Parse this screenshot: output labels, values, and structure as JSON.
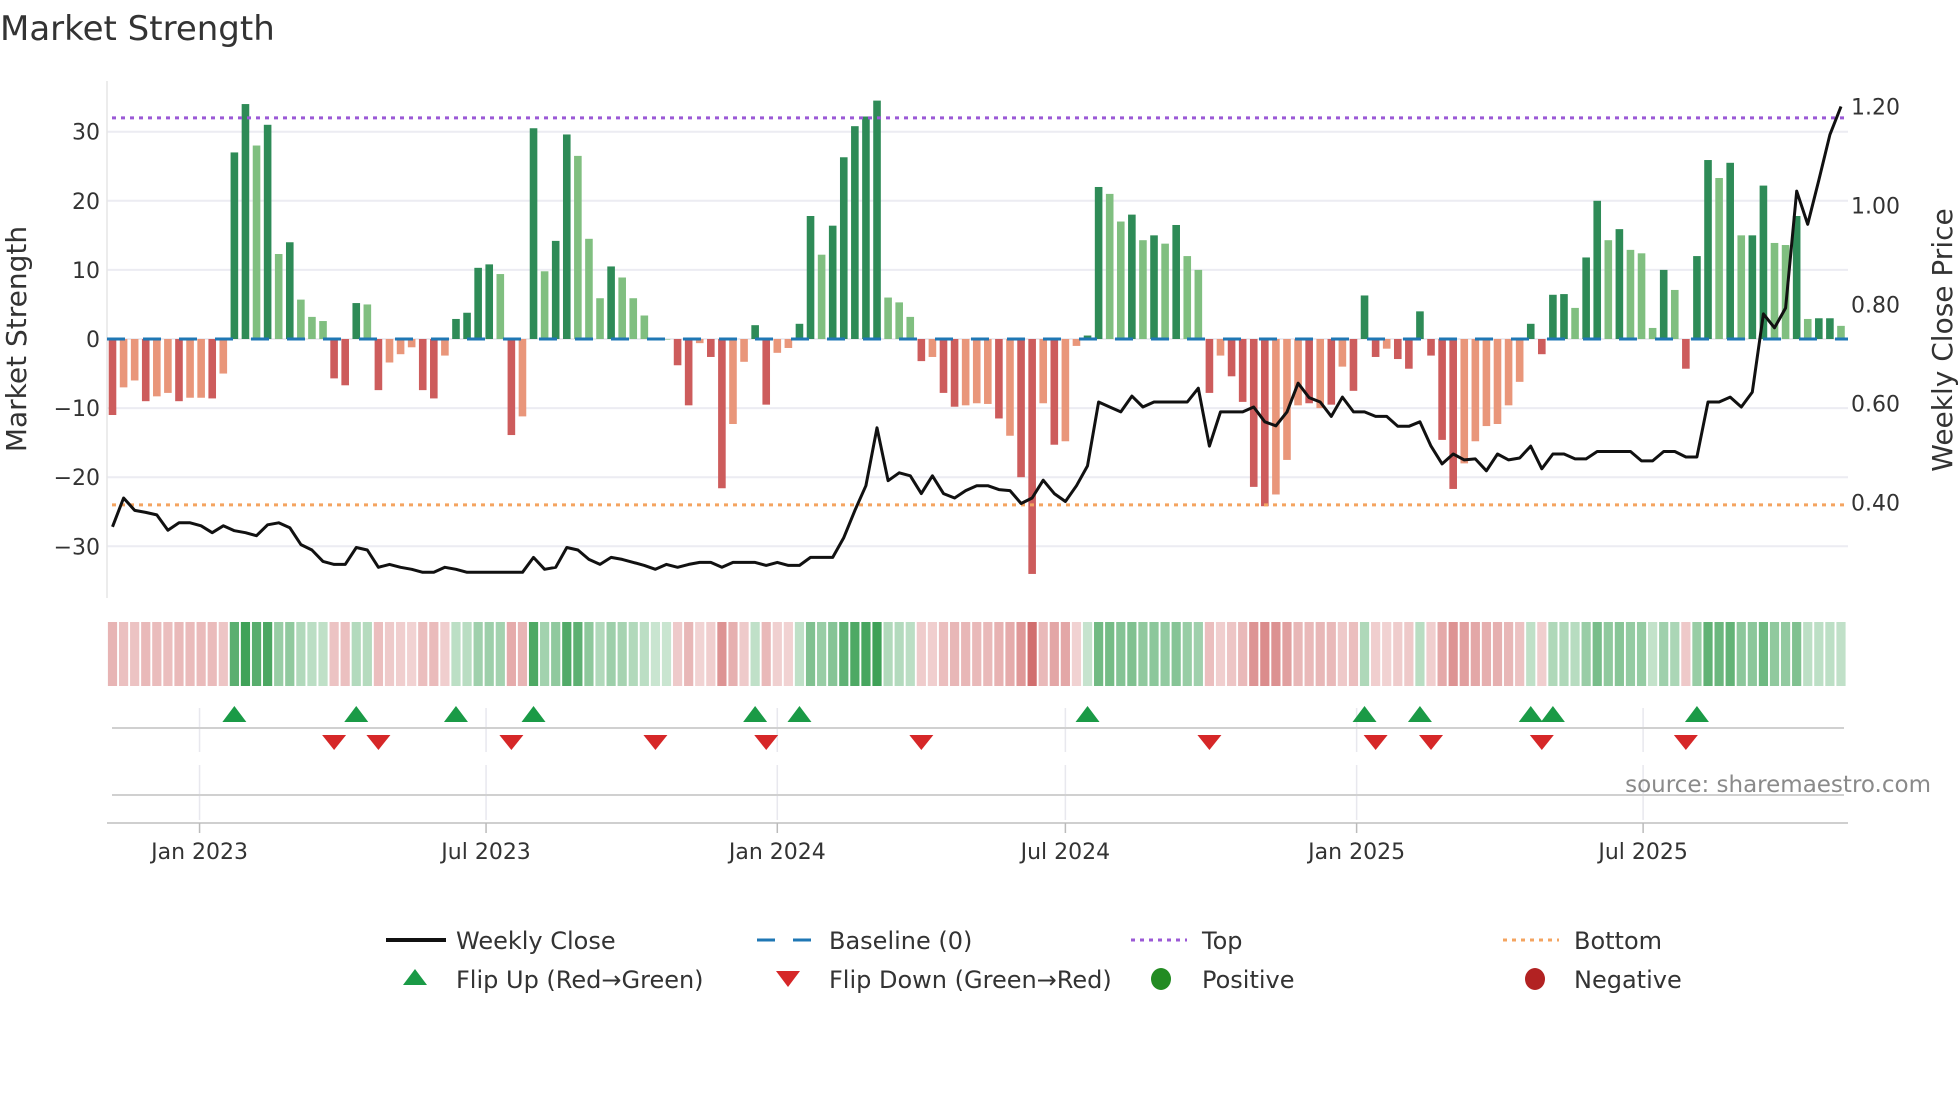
{
  "chart_data": {
    "type": "bar",
    "title": "Market Strength",
    "ylabel": "Market Strength",
    "y2label": "Weekly Close Price",
    "ylim": [
      -37.4,
      37.3
    ],
    "y2lim": [
      0.208,
      1.251
    ],
    "x_start": "2022-11-07",
    "x_step_days": 7,
    "yticks": [
      {
        "v": 30,
        "label": "30"
      },
      {
        "v": 20,
        "label": "20"
      },
      {
        "v": 10,
        "label": "10"
      },
      {
        "v": 0,
        "label": "0"
      },
      {
        "v": -10,
        "label": "−10"
      },
      {
        "v": -20,
        "label": "−20"
      },
      {
        "v": -30,
        "label": "−30"
      }
    ],
    "y2ticks": [
      {
        "v": 1.2,
        "label": "1.20"
      },
      {
        "v": 1.0,
        "label": "1.00"
      },
      {
        "v": 0.8,
        "label": "0.80"
      },
      {
        "v": 0.6,
        "label": "0.60"
      },
      {
        "v": 0.4,
        "label": "0.40"
      }
    ],
    "xticks": [
      {
        "date": "2023-01-01",
        "label": "Jan 2023"
      },
      {
        "date": "2023-07-01",
        "label": "Jul 2023"
      },
      {
        "date": "2024-01-01",
        "label": "Jan 2024"
      },
      {
        "date": "2024-07-01",
        "label": "Jul 2024"
      },
      {
        "date": "2025-01-01",
        "label": "Jan 2025"
      },
      {
        "date": "2025-07-01",
        "label": "Jul 2025"
      }
    ],
    "levels": {
      "top": 32,
      "bottom": -24,
      "baseline": 0
    },
    "strength": [
      -11,
      -7,
      -6,
      -9,
      -8.3,
      -7.8,
      -9,
      -8.5,
      -8.5,
      -8.6,
      -5,
      27,
      34,
      28,
      31,
      12.3,
      14,
      5.7,
      3.2,
      2.6,
      -5.7,
      -6.7,
      5.2,
      5,
      -7.4,
      -3.4,
      -2.2,
      -1.2,
      -7.4,
      -8.6,
      -2.4,
      2.9,
      3.8,
      10.3,
      10.8,
      9.4,
      -13.9,
      -11.2,
      30.5,
      9.8,
      14.2,
      29.6,
      26.5,
      14.5,
      5.9,
      10.5,
      8.9,
      5.9,
      3.4,
      0,
      0,
      -3.8,
      -9.6,
      -0.6,
      -2.6,
      -21.6,
      -12.3,
      -3.3,
      2,
      -9.5,
      -2,
      -1.3,
      2.2,
      17.8,
      12.2,
      16.4,
      26.3,
      30.8,
      32.2,
      34.5,
      6,
      5.3,
      3.2,
      -3.2,
      -2.6,
      -7.8,
      -9.8,
      -9.6,
      -9.3,
      -9.4,
      -11.5,
      -14,
      -20,
      -34,
      -9.3,
      -15.3,
      -14.8,
      -1,
      0.5,
      22,
      21,
      17,
      18,
      14.3,
      15,
      13.8,
      16.5,
      12,
      10,
      -7.8,
      -2.4,
      -5.4,
      -9.1,
      -21.4,
      -24.2,
      -22.5,
      -17.5,
      -9.6,
      -9.3,
      -10,
      -9.5,
      -4,
      -7.5,
      6.3,
      -2.6,
      -1.4,
      -2.9,
      -4.3,
      4,
      -2.4,
      -14.6,
      -21.7,
      -18,
      -14.8,
      -12.6,
      -12.3,
      -9.6,
      -6.2,
      2.2,
      -2.2,
      6.4,
      6.5,
      4.5,
      11.8,
      20,
      14.3,
      15.9,
      12.9,
      12.4,
      1.6,
      10,
      7.1,
      -4.3,
      12,
      25.9,
      23.3,
      25.5,
      15,
      15,
      22.2,
      13.9,
      13.6,
      17.8,
      2.9,
      3,
      3,
      1.9
    ],
    "strengthening": [
      1,
      0,
      0,
      1,
      0,
      0,
      1,
      0,
      0,
      1,
      0,
      1,
      1,
      0,
      1,
      0,
      1,
      0,
      0,
      0,
      1,
      1,
      1,
      0,
      1,
      0,
      0,
      0,
      1,
      1,
      0,
      1,
      1,
      1,
      1,
      0,
      1,
      0,
      1,
      0,
      1,
      1,
      0,
      0,
      0,
      1,
      0,
      0,
      0,
      0,
      0,
      1,
      1,
      0,
      1,
      1,
      0,
      0,
      1,
      1,
      0,
      0,
      1,
      1,
      0,
      1,
      1,
      1,
      1,
      1,
      0,
      0,
      0,
      1,
      0,
      1,
      1,
      0,
      0,
      0,
      1,
      0,
      1,
      1,
      0,
      1,
      0,
      0,
      1,
      1,
      0,
      0,
      1,
      0,
      1,
      0,
      1,
      0,
      0,
      1,
      0,
      1,
      1,
      1,
      1,
      0,
      0,
      0,
      1,
      0,
      1,
      0,
      1,
      1,
      1,
      0,
      1,
      1,
      1,
      1,
      1,
      1,
      0,
      0,
      0,
      0,
      0,
      0,
      1,
      1,
      1,
      1,
      0,
      1,
      1,
      0,
      1,
      0,
      0,
      0,
      1,
      0,
      1,
      1,
      1,
      0,
      1,
      0,
      1,
      1,
      0,
      0,
      1,
      0,
      1,
      1,
      0
    ],
    "weekly_close": [
      0.351,
      0.409,
      0.384,
      0.38,
      0.375,
      0.344,
      0.359,
      0.359,
      0.353,
      0.339,
      0.353,
      0.343,
      0.339,
      0.333,
      0.355,
      0.359,
      0.349,
      0.315,
      0.304,
      0.281,
      0.275,
      0.275,
      0.309,
      0.304,
      0.269,
      0.275,
      0.269,
      0.265,
      0.259,
      0.259,
      0.269,
      0.265,
      0.259,
      0.259,
      0.259,
      0.259,
      0.259,
      0.259,
      0.289,
      0.265,
      0.269,
      0.309,
      0.304,
      0.285,
      0.275,
      0.289,
      0.285,
      0.279,
      0.273,
      0.265,
      0.275,
      0.269,
      0.275,
      0.279,
      0.279,
      0.269,
      0.279,
      0.279,
      0.279,
      0.273,
      0.279,
      0.273,
      0.273,
      0.289,
      0.289,
      0.289,
      0.329,
      0.384,
      0.434,
      0.551,
      0.444,
      0.46,
      0.454,
      0.418,
      0.454,
      0.418,
      0.409,
      0.424,
      0.434,
      0.434,
      0.426,
      0.424,
      0.398,
      0.409,
      0.445,
      0.418,
      0.402,
      0.434,
      0.474,
      0.603,
      0.593,
      0.583,
      0.615,
      0.593,
      0.603,
      0.603,
      0.603,
      0.603,
      0.631,
      0.514,
      0.583,
      0.583,
      0.583,
      0.593,
      0.563,
      0.555,
      0.583,
      0.641,
      0.612,
      0.603,
      0.574,
      0.613,
      0.583,
      0.583,
      0.574,
      0.574,
      0.554,
      0.554,
      0.563,
      0.514,
      0.478,
      0.498,
      0.486,
      0.488,
      0.464,
      0.498,
      0.486,
      0.49,
      0.514,
      0.468,
      0.498,
      0.498,
      0.488,
      0.488,
      0.503,
      0.503,
      0.503,
      0.503,
      0.484,
      0.484,
      0.503,
      0.503,
      0.492,
      0.492,
      0.603,
      0.603,
      0.613,
      0.593,
      0.623,
      0.781,
      0.753,
      0.793,
      1.029,
      0.962,
      1.051,
      1.143,
      1.2
    ],
    "flip_up_weeks": [
      11,
      22,
      31,
      38,
      58,
      62,
      88,
      113,
      118,
      128,
      130,
      143
    ],
    "flip_down_weeks": [
      20,
      24,
      36,
      49,
      59,
      73,
      99,
      114,
      119,
      129,
      142
    ],
    "legend": [
      {
        "key": "close",
        "label": "Weekly Close"
      },
      {
        "key": "baseline",
        "label": "Baseline (0)"
      },
      {
        "key": "top",
        "label": "Top"
      },
      {
        "key": "bottom",
        "label": "Bottom"
      },
      {
        "key": "flipup",
        "label": "Flip Up (Red→Green)"
      },
      {
        "key": "flipdown",
        "label": "Flip Down (Green→Red)"
      },
      {
        "key": "positive",
        "label": "Positive"
      },
      {
        "key": "negative",
        "label": "Negative"
      }
    ],
    "legend_placement": "bottom",
    "grid": true,
    "colors": {
      "pos_strong": "#2e8b57",
      "pos_weak": "#80bf80",
      "neg_strong": "#cd5c5c",
      "neg_weak": "#e9967a",
      "close": "#111111",
      "baseline": "#1f77b4",
      "top": "#9b59d6",
      "bottom": "#f4a460",
      "flip_up": "#1a9a46",
      "flip_down": "#d62728",
      "positive": "#228b22",
      "negative": "#b22222"
    }
  },
  "source": "source: sharemaestro.com"
}
